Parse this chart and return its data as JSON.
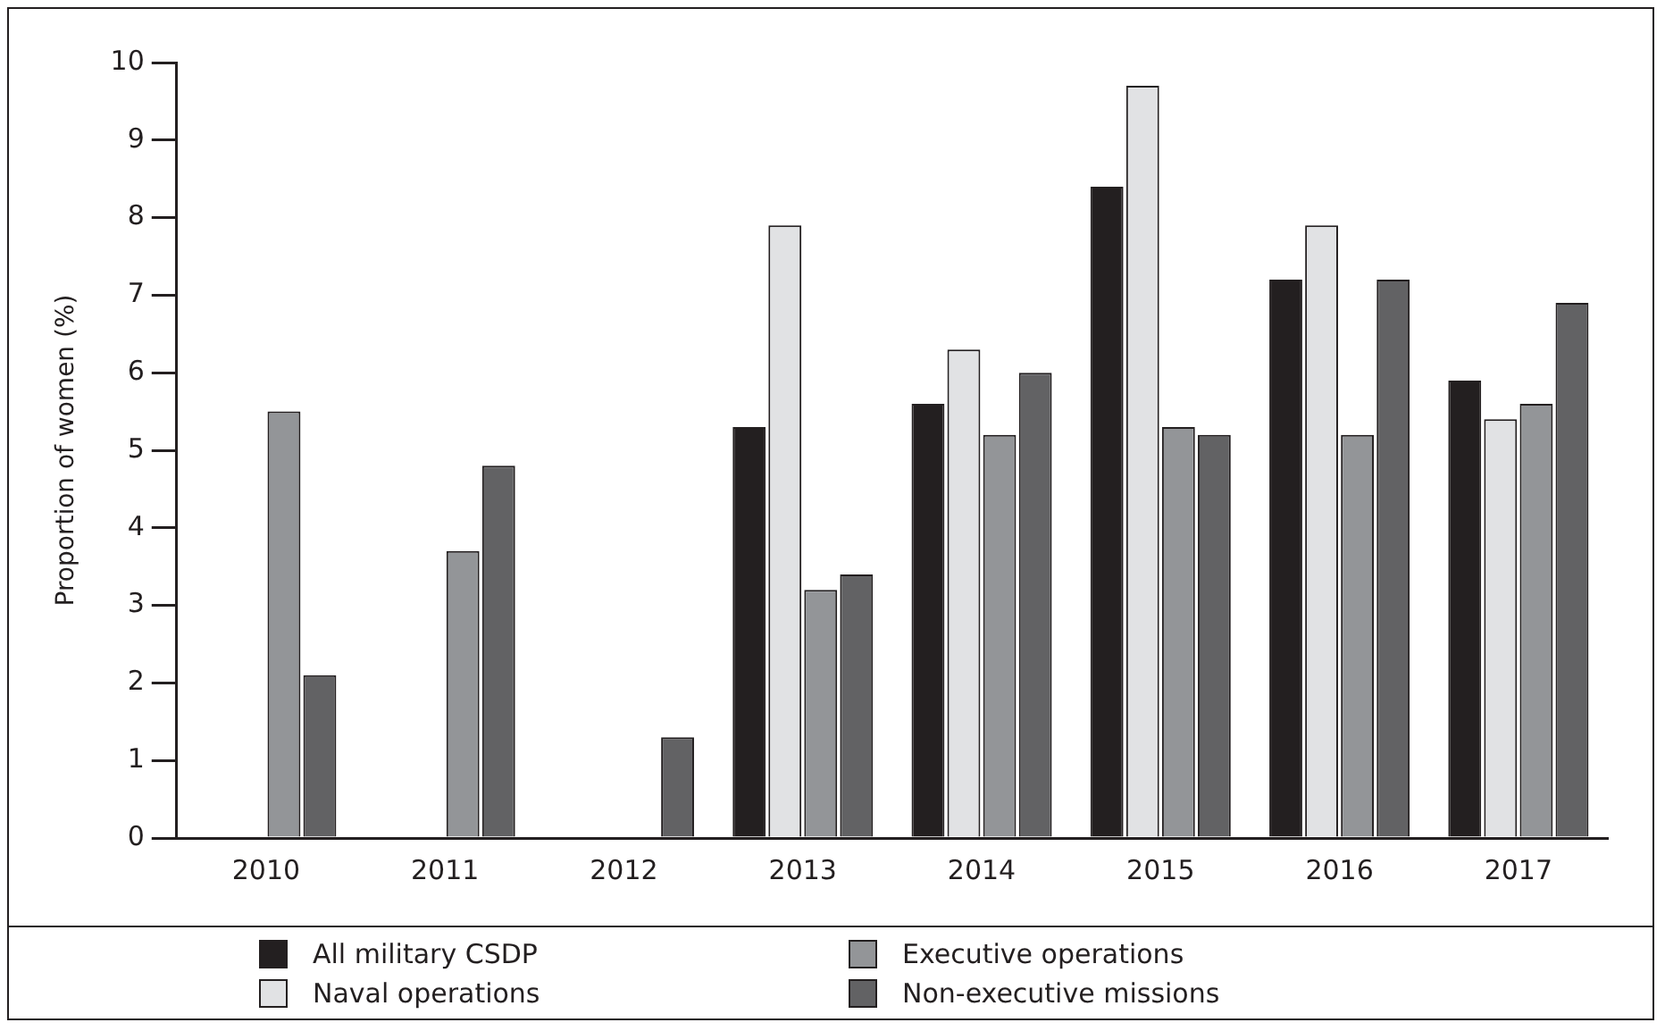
{
  "chart_data": {
    "type": "bar",
    "ylabel": "Proportion of women (%)",
    "categories": [
      "2010",
      "2011",
      "2012",
      "2013",
      "2014",
      "2015",
      "2016",
      "2017"
    ],
    "series": [
      {
        "name": "All military CSDP",
        "color": "#231f20",
        "values": [
          null,
          null,
          null,
          5.3,
          5.6,
          8.4,
          7.2,
          5.9
        ]
      },
      {
        "name": "Naval operations",
        "color": "#e1e2e4",
        "values": [
          null,
          null,
          null,
          7.9,
          6.3,
          9.7,
          7.9,
          5.4
        ]
      },
      {
        "name": "Executive operations",
        "color": "#939598",
        "values": [
          5.5,
          3.7,
          null,
          3.2,
          5.2,
          5.3,
          5.2,
          5.6
        ]
      },
      {
        "name": "Non-executive missions",
        "color": "#626264",
        "values": [
          2.1,
          4.8,
          1.3,
          3.4,
          6.0,
          5.2,
          7.2,
          6.9
        ]
      }
    ],
    "ylim": [
      0,
      10
    ],
    "yticks": [
      0,
      1,
      2,
      3,
      4,
      5,
      6,
      7,
      8,
      9,
      10
    ],
    "grid": false,
    "legend": "bottom"
  }
}
